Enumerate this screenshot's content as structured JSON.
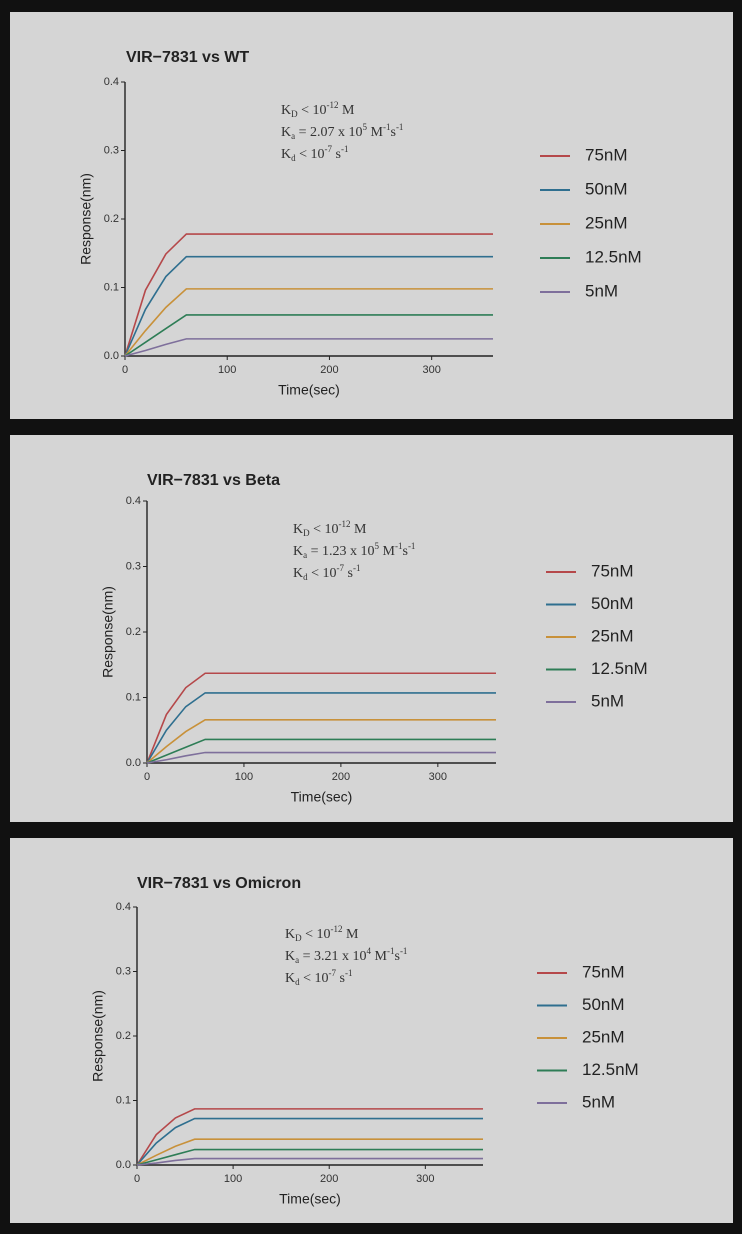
{
  "chart_data": [
    {
      "type": "line",
      "title": "VIR−7831 vs WT",
      "x_label": "Time(sec)",
      "y_label": "Response(nm)",
      "annotations": [
        [
          {
            "text": "K"
          },
          {
            "text": "D",
            "script": "sub"
          },
          {
            "text": " < 10"
          },
          {
            "text": "-12",
            "script": "sup"
          },
          {
            "text": " M"
          }
        ],
        [
          {
            "text": "K"
          },
          {
            "text": "a",
            "script": "sub"
          },
          {
            "text": " = 2.07 x 10"
          },
          {
            "text": "5",
            "script": "sup"
          },
          {
            "text": " M"
          },
          {
            "text": "-1",
            "script": "sup"
          },
          {
            "text": "s"
          },
          {
            "text": "-1",
            "script": "sup"
          }
        ],
        [
          {
            "text": "K"
          },
          {
            "text": "d",
            "script": "sub"
          },
          {
            "text": " < 10"
          },
          {
            "text": "-7",
            "script": "sup"
          },
          {
            "text": " s"
          },
          {
            "text": "-1",
            "script": "sup"
          }
        ]
      ],
      "x": [
        0,
        20,
        40,
        60,
        360
      ],
      "series": [
        {
          "name": "75nM",
          "color": "#b5484a",
          "values": [
            0,
            0.096,
            0.149,
            0.178,
            0.178
          ]
        },
        {
          "name": "50nM",
          "color": "#2f6f8f",
          "values": [
            0,
            0.068,
            0.116,
            0.145,
            0.145
          ]
        },
        {
          "name": "25nM",
          "color": "#c8913a",
          "values": [
            0,
            0.037,
            0.071,
            0.098,
            0.098
          ]
        },
        {
          "name": "12.5nM",
          "color": "#2e7d56",
          "values": [
            0,
            0.02,
            0.04,
            0.06,
            0.06
          ]
        },
        {
          "name": "5nM",
          "color": "#7e6f9b",
          "values": [
            0,
            0.008,
            0.017,
            0.025,
            0.025
          ]
        }
      ],
      "xlim": [
        0,
        360
      ],
      "ylim": [
        0,
        0.4
      ],
      "xticks": [
        0,
        100,
        200,
        300
      ],
      "yticks": [
        {
          "value": 0,
          "label": "0.0"
        },
        0.1,
        0.2,
        0.3,
        0.4
      ],
      "legend": "right"
    },
    {
      "type": "line",
      "title": "VIR−7831 vs Beta",
      "x_label": "Time(sec)",
      "y_label": "Response(nm)",
      "annotations": [
        [
          {
            "text": "K"
          },
          {
            "text": "D",
            "script": "sub"
          },
          {
            "text": " < 10"
          },
          {
            "text": "-12",
            "script": "sup"
          },
          {
            "text": " M"
          }
        ],
        [
          {
            "text": "K"
          },
          {
            "text": "a",
            "script": "sub"
          },
          {
            "text": " = 1.23 x 10"
          },
          {
            "text": "5",
            "script": "sup"
          },
          {
            "text": " M"
          },
          {
            "text": "-1",
            "script": "sup"
          },
          {
            "text": "s"
          },
          {
            "text": "-1",
            "script": "sup"
          }
        ],
        [
          {
            "text": "K"
          },
          {
            "text": "d",
            "script": "sub"
          },
          {
            "text": " < 10"
          },
          {
            "text": "-7",
            "script": "sup"
          },
          {
            "text": " s"
          },
          {
            "text": "-1",
            "script": "sup"
          }
        ]
      ],
      "x": [
        0,
        20,
        40,
        60,
        360
      ],
      "series": [
        {
          "name": "75nM",
          "color": "#b5484a",
          "values": [
            0,
            0.074,
            0.115,
            0.137,
            0.137
          ]
        },
        {
          "name": "50nM",
          "color": "#2f6f8f",
          "values": [
            0,
            0.05,
            0.086,
            0.107,
            0.107
          ]
        },
        {
          "name": "25nM",
          "color": "#c8913a",
          "values": [
            0,
            0.025,
            0.048,
            0.066,
            0.066
          ]
        },
        {
          "name": "12.5nM",
          "color": "#2e7d56",
          "values": [
            0,
            0.012,
            0.024,
            0.036,
            0.036
          ]
        },
        {
          "name": "5nM",
          "color": "#7e6f9b",
          "values": [
            0,
            0.005,
            0.011,
            0.016,
            0.016
          ]
        }
      ],
      "xlim": [
        0,
        360
      ],
      "ylim": [
        0,
        0.4
      ],
      "xticks": [
        0,
        100,
        200,
        300
      ],
      "yticks": [
        {
          "value": 0,
          "label": "0.0"
        },
        0.1,
        0.2,
        0.3,
        0.4
      ],
      "legend": "right"
    },
    {
      "type": "line",
      "title": "VIR−7831 vs Omicron",
      "x_label": "Time(sec)",
      "y_label": "Response(nm)",
      "annotations": [
        [
          {
            "text": "K"
          },
          {
            "text": "D",
            "script": "sub"
          },
          {
            "text": " < 10"
          },
          {
            "text": "-12",
            "script": "sup"
          },
          {
            "text": " M"
          }
        ],
        [
          {
            "text": "K"
          },
          {
            "text": "a",
            "script": "sub"
          },
          {
            "text": " = 3.21 x 10"
          },
          {
            "text": "4",
            "script": "sup"
          },
          {
            "text": " M"
          },
          {
            "text": "-1",
            "script": "sup"
          },
          {
            "text": "s"
          },
          {
            "text": "-1",
            "script": "sup"
          }
        ],
        [
          {
            "text": "K"
          },
          {
            "text": "d",
            "script": "sub"
          },
          {
            "text": " < 10"
          },
          {
            "text": "-7",
            "script": "sup"
          },
          {
            "text": " s"
          },
          {
            "text": "-1",
            "script": "sup"
          }
        ]
      ],
      "x": [
        0,
        20,
        40,
        60,
        360
      ],
      "series": [
        {
          "name": "75nM",
          "color": "#b5484a",
          "values": [
            0,
            0.047,
            0.073,
            0.087,
            0.087
          ]
        },
        {
          "name": "50nM",
          "color": "#2f6f8f",
          "values": [
            0,
            0.034,
            0.058,
            0.072,
            0.072
          ]
        },
        {
          "name": "25nM",
          "color": "#c8913a",
          "values": [
            0,
            0.015,
            0.029,
            0.04,
            0.04
          ]
        },
        {
          "name": "12.5nM",
          "color": "#2e7d56",
          "values": [
            0,
            0.008,
            0.016,
            0.024,
            0.024
          ]
        },
        {
          "name": "5nM",
          "color": "#7e6f9b",
          "values": [
            0,
            0.003,
            0.007,
            0.01,
            0.01
          ]
        }
      ],
      "xlim": [
        0,
        360
      ],
      "ylim": [
        0,
        0.4
      ],
      "xticks": [
        0,
        100,
        200,
        300
      ],
      "yticks": [
        {
          "value": 0,
          "label": "0.0"
        },
        0.1,
        0.2,
        0.3,
        0.4
      ],
      "legend": "right"
    }
  ]
}
